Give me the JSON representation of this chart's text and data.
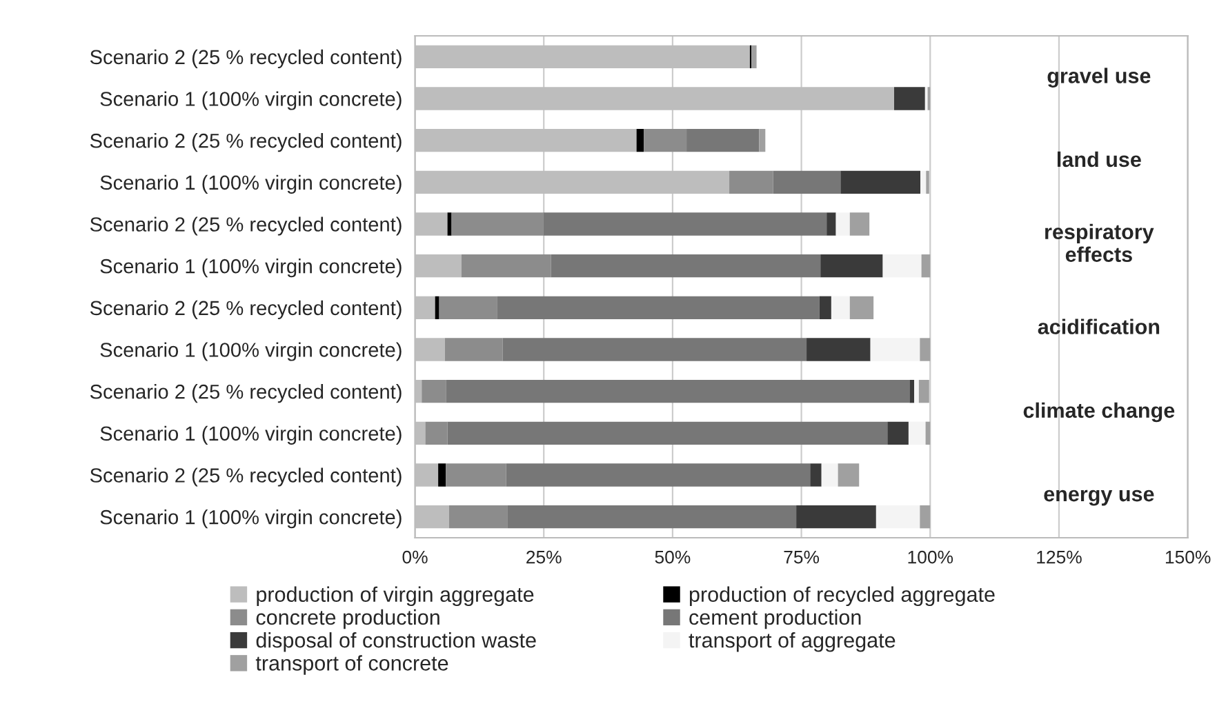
{
  "chart_data": {
    "type": "bar",
    "orientation": "horizontal",
    "stacked": true,
    "categories": [
      "Scenario 2 (25 % recycled content)",
      "Scenario 1 (100% virgin concrete)",
      "Scenario 2 (25 % recycled content)",
      "Scenario 1 (100% virgin concrete)",
      "Scenario 2 (25 % recycled content)",
      "Scenario 1 (100% virgin concrete)",
      "Scenario 2 (25 % recycled content)",
      "Scenario 1 (100% virgin concrete)",
      "Scenario 2 (25 % recycled content)",
      "Scenario 1 (100% virgin concrete)",
      "Scenario 2 (25 % recycled content)",
      "Scenario 1 (100% virgin concrete)"
    ],
    "series": [
      {
        "name": "production of virgin aggregate",
        "color": "#bdbdbd",
        "values": [
          65,
          93,
          43,
          61,
          6.3,
          9,
          3.9,
          5.8,
          1.3,
          2,
          4.5,
          6.6
        ]
      },
      {
        "name": "production of recycled aggregate",
        "color": "#000000",
        "values": [
          0.3,
          0,
          1.4,
          0,
          0.8,
          0,
          0.8,
          0,
          0,
          0,
          1.5,
          0
        ]
      },
      {
        "name": "concrete production",
        "color": "#8c8c8c",
        "values": [
          0,
          0,
          8.3,
          8.5,
          17.8,
          17.4,
          11.2,
          11.2,
          4.7,
          4.3,
          11.7,
          11.4
        ]
      },
      {
        "name": "cement production",
        "color": "#777777",
        "values": [
          0,
          0,
          14.1,
          13.1,
          55,
          52.3,
          62.6,
          59,
          90,
          85.4,
          59,
          56
        ]
      },
      {
        "name": "disposal of construction waste",
        "color": "#3a3a3a",
        "values": [
          0,
          6,
          0,
          15.5,
          1.8,
          12.1,
          2.3,
          12.4,
          0.9,
          4.1,
          2.2,
          15.5
        ]
      },
      {
        "name": "transport of aggregate",
        "color": "#f4f4f4",
        "values": [
          0,
          0.5,
          0,
          1.1,
          2.7,
          7.5,
          3.6,
          9.6,
          0.9,
          3.3,
          3.2,
          8.5
        ]
      },
      {
        "name": "transport of concrete",
        "color": "#a0a0a0",
        "values": [
          1,
          0.5,
          1.2,
          0.6,
          3.8,
          1.7,
          4.6,
          2,
          2,
          0.9,
          4.1,
          2
        ]
      }
    ],
    "xlim": [
      0,
      150
    ],
    "xticks": [
      {
        "value": 0,
        "label": "0%"
      },
      {
        "value": 25,
        "label": "25%"
      },
      {
        "value": 50,
        "label": "50%"
      },
      {
        "value": 75,
        "label": "75%"
      },
      {
        "value": 100,
        "label": "100%"
      },
      {
        "value": 125,
        "label": "125%"
      },
      {
        "value": 150,
        "label": "150%"
      }
    ],
    "grid": "x",
    "legend": "bottom",
    "annotations": [
      "gravel use",
      "land use",
      "respiratory\neffects",
      "acidification",
      "climate change",
      "energy use"
    ]
  }
}
